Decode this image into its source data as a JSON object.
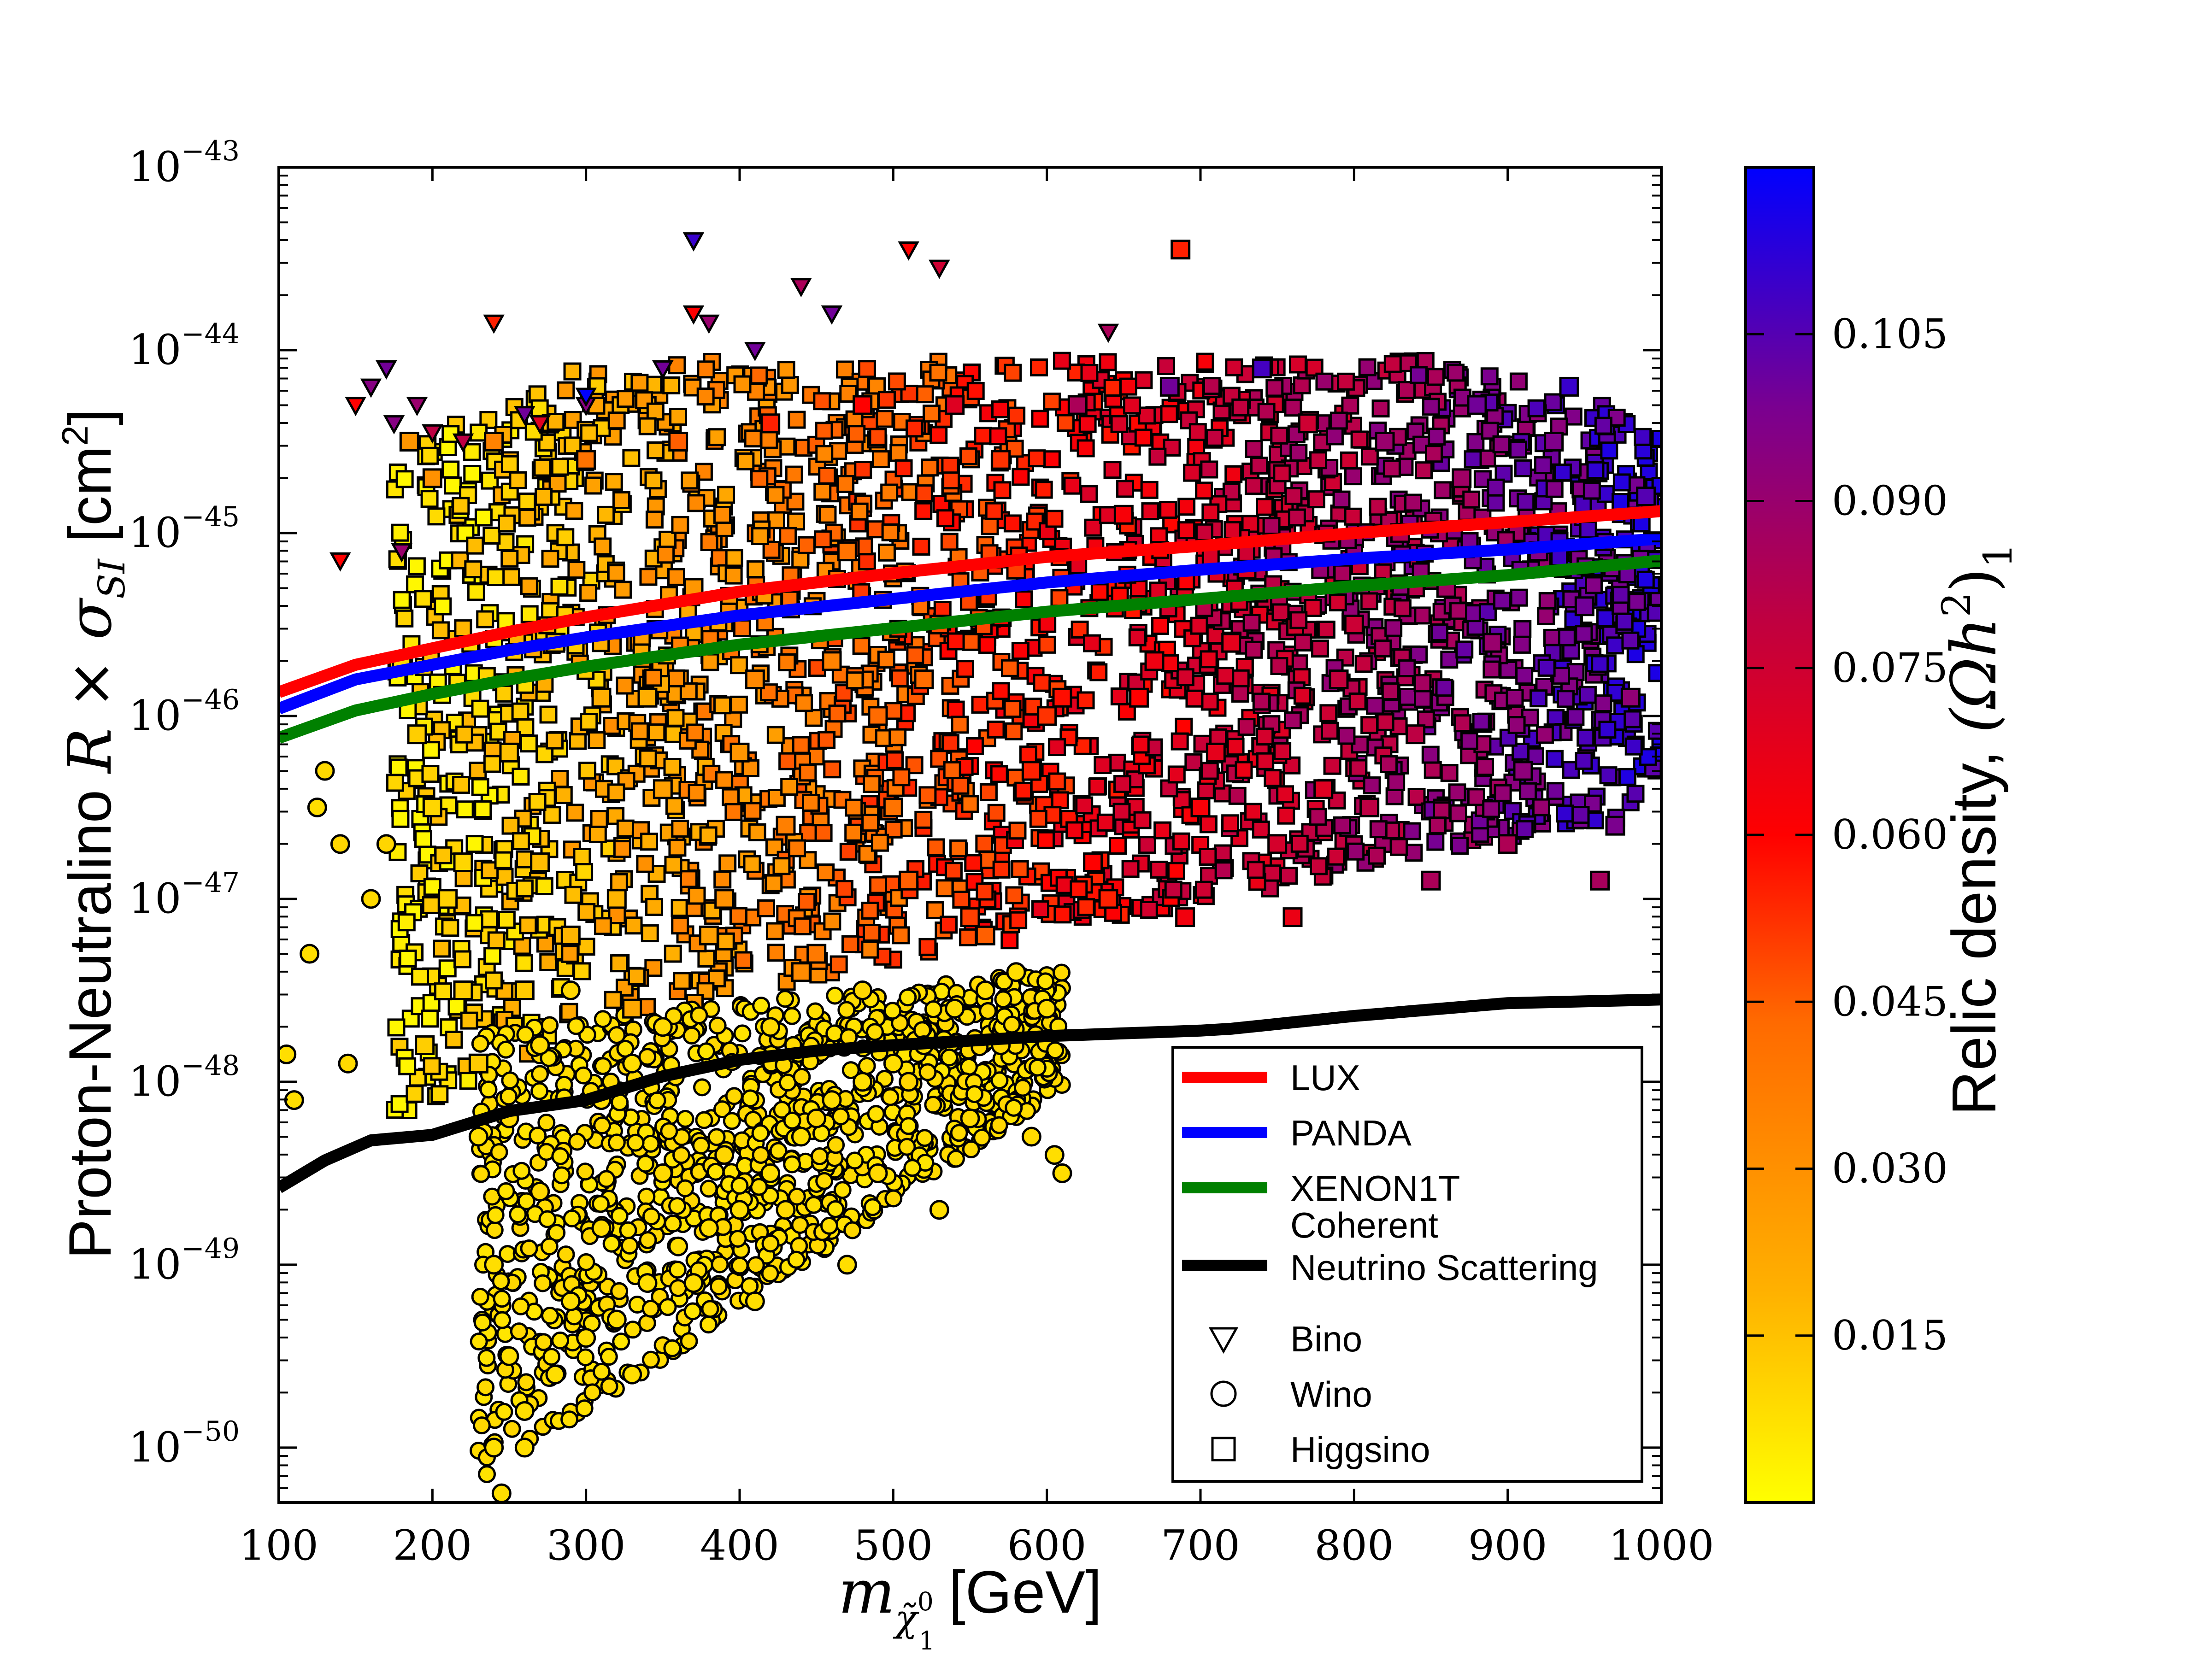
{
  "chart_data": {
    "type": "scatter",
    "title": "",
    "xlabel": {
      "symbol": "m",
      "sub_base": "χ̃",
      "sub_sup": "0",
      "sub_sub": "1",
      "unit": "[GeV]"
    },
    "ylabel": {
      "prefix": "Proton-Neutralino ",
      "math": "R × σ",
      "math_sub": "SI",
      "unit_pre": " [cm",
      "unit_sup": "2",
      "unit_post": "]"
    },
    "xlim": [
      100,
      1000
    ],
    "ylim_log10": [
      -50.3,
      -43
    ],
    "yscale": "log",
    "xticks": [
      {
        "value": 100,
        "label": "100"
      },
      {
        "value": 200,
        "label": "200"
      },
      {
        "value": 300,
        "label": "300"
      },
      {
        "value": 400,
        "label": "400"
      },
      {
        "value": 500,
        "label": "500"
      },
      {
        "value": 600,
        "label": "600"
      },
      {
        "value": 700,
        "label": "700"
      },
      {
        "value": 800,
        "label": "800"
      },
      {
        "value": 900,
        "label": "900"
      },
      {
        "value": 1000,
        "label": "1000"
      }
    ],
    "yticks": [
      {
        "exp": -43,
        "base": "10",
        "sup": "−43"
      },
      {
        "exp": -44,
        "base": "10",
        "sup": "−44"
      },
      {
        "exp": -45,
        "base": "10",
        "sup": "−45"
      },
      {
        "exp": -46,
        "base": "10",
        "sup": "−46"
      },
      {
        "exp": -47,
        "base": "10",
        "sup": "−47"
      },
      {
        "exp": -48,
        "base": "10",
        "sup": "−48"
      },
      {
        "exp": -49,
        "base": "10",
        "sup": "−49"
      },
      {
        "exp": -50,
        "base": "10",
        "sup": "−50"
      }
    ],
    "lines": [
      {
        "name": "LUX",
        "color": "#ff0000",
        "x": [
          100,
          150,
          200,
          250,
          300,
          400,
          500,
          600,
          700,
          800,
          900,
          1000
        ],
        "log10y": [
          -45.87,
          -45.72,
          -45.63,
          -45.54,
          -45.46,
          -45.32,
          -45.22,
          -45.13,
          -45.07,
          -45.0,
          -44.94,
          -44.88
        ]
      },
      {
        "name": "PANDA",
        "color": "#0000ff",
        "x": [
          100,
          150,
          200,
          250,
          300,
          400,
          500,
          600,
          700,
          800,
          900,
          1000
        ],
        "log10y": [
          -45.96,
          -45.8,
          -45.72,
          -45.64,
          -45.57,
          -45.45,
          -45.36,
          -45.27,
          -45.2,
          -45.14,
          -45.09,
          -45.03
        ]
      },
      {
        "name": "XENON1T",
        "color": "#008000",
        "x": [
          100,
          150,
          200,
          250,
          300,
          400,
          500,
          600,
          700,
          800,
          900,
          1000
        ],
        "log10y": [
          -46.12,
          -45.97,
          -45.88,
          -45.8,
          -45.73,
          -45.61,
          -45.52,
          -45.43,
          -45.36,
          -45.29,
          -45.23,
          -45.15
        ]
      },
      {
        "name": "Coherent Neutrino Scattering",
        "color": "#000000",
        "x": [
          100,
          130,
          160,
          200,
          250,
          300,
          350,
          400,
          450,
          500,
          600,
          700,
          720,
          800,
          900,
          1000
        ],
        "log10y": [
          -48.58,
          -48.43,
          -48.32,
          -48.29,
          -48.16,
          -48.1,
          -47.97,
          -47.88,
          -47.83,
          -47.8,
          -47.75,
          -47.72,
          -47.71,
          -47.64,
          -47.57,
          -47.55
        ]
      }
    ],
    "colorbar": {
      "label_prefix": "Relic density, ",
      "label_math": "(Ωh",
      "label_sup": "2",
      "label_close": ")",
      "label_sub": "1",
      "vmin": 0.0,
      "vmax": 0.12,
      "ticks": [
        "0.015",
        "0.030",
        "0.045",
        "0.060",
        "0.075",
        "0.090",
        "0.105"
      ],
      "tick_values": [
        0.015,
        0.03,
        0.045,
        0.06,
        0.075,
        0.09,
        0.105
      ],
      "colormap": [
        "#ffff00",
        "#ffb000",
        "#ff6a00",
        "#ff0000",
        "#c00040",
        "#7a0090",
        "#0000ff"
      ]
    },
    "legend": {
      "position": "lower-right",
      "entries": [
        {
          "label": "LUX",
          "kind": "line",
          "color": "#ff0000"
        },
        {
          "label": "PANDA",
          "kind": "line",
          "color": "#0000ff"
        },
        {
          "label": "XENON1T",
          "kind": "line",
          "color": "#008000"
        },
        {
          "label": "Coherent",
          "label2": "Neutrino Scattering",
          "kind": "line",
          "color": "#000000"
        },
        {
          "label": "Bino",
          "kind": "marker",
          "marker": "triangle-down"
        },
        {
          "label": "Wino",
          "kind": "marker",
          "marker": "circle"
        },
        {
          "label": "Higgsino",
          "kind": "marker",
          "marker": "square"
        }
      ]
    },
    "scatter_series": [
      {
        "name": "Higgsino",
        "marker": "square",
        "points": [
          [
            180,
            -45.7,
            0.01
          ],
          [
            190,
            -46.1,
            0.012
          ],
          [
            200,
            -46.5,
            0.01
          ],
          [
            210,
            -47.0,
            0.011
          ],
          [
            220,
            -47.5,
            0.012
          ],
          [
            230,
            -47.9,
            0.013
          ],
          [
            250,
            -46.2,
            0.015
          ],
          [
            270,
            -46.8,
            0.016
          ],
          [
            290,
            -47.2,
            0.018
          ],
          [
            310,
            -45.9,
            0.02
          ],
          [
            330,
            -47.6,
            0.022
          ],
          [
            350,
            -46.4,
            0.025
          ],
          [
            370,
            -45.3,
            0.028
          ],
          [
            390,
            -47.0,
            0.03
          ],
          [
            410,
            -45.8,
            0.033
          ],
          [
            430,
            -46.6,
            0.036
          ],
          [
            450,
            -47.3,
            0.038
          ],
          [
            470,
            -45.1,
            0.04
          ],
          [
            490,
            -46.0,
            0.043
          ],
          [
            510,
            -46.9,
            0.045
          ],
          [
            530,
            -45.5,
            0.048
          ],
          [
            550,
            -47.1,
            0.05
          ],
          [
            570,
            -44.6,
            0.052
          ],
          [
            590,
            -46.3,
            0.055
          ],
          [
            610,
            -45.9,
            0.058
          ],
          [
            630,
            -46.8,
            0.06
          ],
          [
            650,
            -44.9,
            0.062
          ],
          [
            670,
            -45.7,
            0.065
          ],
          [
            690,
            -47.1,
            0.064
          ],
          [
            710,
            -46.2,
            0.068
          ],
          [
            730,
            -45.2,
            0.07
          ],
          [
            750,
            -46.7,
            0.073
          ],
          [
            770,
            -44.4,
            0.075
          ],
          [
            790,
            -45.8,
            0.078
          ],
          [
            810,
            -46.5,
            0.08
          ],
          [
            830,
            -45.0,
            0.083
          ],
          [
            850,
            -46.9,
            0.085
          ],
          [
            870,
            -44.7,
            0.088
          ],
          [
            890,
            -45.6,
            0.09
          ],
          [
            910,
            -46.3,
            0.093
          ],
          [
            930,
            -44.5,
            0.097
          ],
          [
            950,
            -45.4,
            0.1
          ],
          [
            970,
            -46.6,
            0.098
          ],
          [
            990,
            -44.8,
            0.105
          ],
          [
            980,
            -45.9,
            0.092
          ],
          [
            960,
            -46.9,
            0.086
          ],
          [
            940,
            -44.2,
            0.11
          ],
          [
            920,
            -45.1,
            0.095
          ],
          [
            900,
            -46.7,
            0.084
          ],
          [
            880,
            -44.3,
            0.1
          ],
          [
            860,
            -45.3,
            0.087
          ],
          [
            840,
            -46.1,
            0.08
          ],
          [
            820,
            -44.5,
            0.09
          ],
          [
            800,
            -45.5,
            0.076
          ],
          [
            780,
            -46.4,
            0.07
          ],
          [
            760,
            -47.1,
            0.066
          ],
          [
            740,
            -44.1,
            0.108
          ],
          [
            720,
            -45.6,
            0.068
          ],
          [
            700,
            -46.5,
            0.062
          ],
          [
            680,
            -44.2,
            0.1
          ],
          [
            660,
            -45.9,
            0.06
          ],
          [
            640,
            -47.0,
            0.055
          ],
          [
            620,
            -44.3,
            0.085
          ],
          [
            600,
            -46.0,
            0.052
          ],
          [
            580,
            -45.2,
            0.05
          ],
          [
            560,
            -47.2,
            0.045
          ],
          [
            540,
            -44.3,
            0.07
          ],
          [
            520,
            -45.8,
            0.042
          ],
          [
            500,
            -46.5,
            0.04
          ],
          [
            480,
            -44.3,
            0.06
          ],
          [
            460,
            -45.7,
            0.035
          ],
          [
            440,
            -47.4,
            0.032
          ],
          [
            420,
            -44.4,
            0.055
          ],
          [
            400,
            -46.2,
            0.028
          ],
          [
            380,
            -47.2,
            0.025
          ],
          [
            360,
            -44.5,
            0.045
          ],
          [
            340,
            -45.9,
            0.02
          ],
          [
            320,
            -47.0,
            0.018
          ],
          [
            300,
            -44.6,
            0.04
          ],
          [
            280,
            -45.6,
            0.015
          ],
          [
            260,
            -47.5,
            0.013
          ],
          [
            240,
            -44.5,
            0.035
          ],
          [
            220,
            -46.8,
            0.01
          ],
          [
            200,
            -44.7,
            0.03
          ],
          [
            185,
            -44.5,
            0.028
          ],
          [
            195,
            -47.8,
            0.012
          ],
          [
            687,
            -43.45,
            0.055
          ]
        ]
      },
      {
        "name": "Wino",
        "marker": "circle",
        "points": [
          [
            105,
            -47.85,
            0.008
          ],
          [
            110,
            -48.1,
            0.008
          ],
          [
            130,
            -46.3,
            0.009
          ],
          [
            125,
            -46.5,
            0.008
          ],
          [
            140,
            -46.7,
            0.01
          ],
          [
            120,
            -47.3,
            0.008
          ],
          [
            145,
            -47.9,
            0.009
          ],
          [
            160,
            -47.0,
            0.009
          ],
          [
            170,
            -46.7,
            0.01
          ],
          [
            240,
            -49.0,
            0.008
          ],
          [
            250,
            -49.5,
            0.008
          ],
          [
            260,
            -50.0,
            0.008
          ],
          [
            270,
            -48.6,
            0.009
          ],
          [
            290,
            -49.2,
            0.008
          ],
          [
            310,
            -48.8,
            0.009
          ],
          [
            330,
            -49.6,
            0.008
          ],
          [
            350,
            -48.5,
            0.009
          ],
          [
            370,
            -49.1,
            0.008
          ],
          [
            390,
            -48.4,
            0.01
          ],
          [
            410,
            -49.2,
            0.008
          ],
          [
            430,
            -48.7,
            0.009
          ],
          [
            450,
            -48.2,
            0.01
          ],
          [
            470,
            -49.0,
            0.008
          ],
          [
            490,
            -48.5,
            0.009
          ],
          [
            510,
            -48.0,
            0.01
          ],
          [
            530,
            -48.7,
            0.008
          ],
          [
            550,
            -48.2,
            0.009
          ],
          [
            570,
            -47.8,
            0.01
          ],
          [
            590,
            -48.3,
            0.009
          ],
          [
            610,
            -48.5,
            0.008
          ],
          [
            240,
            -50.0,
            0.008
          ],
          [
            245,
            -50.25,
            0.008
          ],
          [
            260,
            -49.8,
            0.008
          ],
          [
            280,
            -49.6,
            0.008
          ],
          [
            300,
            -49.4,
            0.008
          ],
          [
            320,
            -49.3,
            0.008
          ],
          [
            340,
            -49.1,
            0.008
          ],
          [
            360,
            -48.9,
            0.008
          ],
          [
            380,
            -48.8,
            0.008
          ],
          [
            400,
            -48.7,
            0.008
          ],
          [
            420,
            -48.5,
            0.008
          ],
          [
            440,
            -48.3,
            0.008
          ],
          [
            460,
            -48.1,
            0.008
          ],
          [
            480,
            -48.0,
            0.008
          ],
          [
            500,
            -47.9,
            0.008
          ],
          [
            520,
            -47.8,
            0.008
          ],
          [
            540,
            -47.6,
            0.008
          ],
          [
            560,
            -47.5,
            0.008
          ],
          [
            580,
            -47.4,
            0.008
          ],
          [
            600,
            -47.6,
            0.008
          ],
          [
            605,
            -48.4,
            0.008
          ],
          [
            250,
            -48.2,
            0.009
          ],
          [
            270,
            -47.8,
            0.009
          ],
          [
            290,
            -47.5,
            0.01
          ],
          [
            230,
            -48.3,
            0.008
          ],
          [
            310,
            -48.1,
            0.008
          ],
          [
            330,
            -47.9,
            0.008
          ],
          [
            350,
            -47.7,
            0.009
          ],
          [
            420,
            -47.7,
            0.009
          ],
          [
            480,
            -47.5,
            0.01
          ]
        ]
      },
      {
        "name": "Bino",
        "marker": "triangle-down",
        "points": [
          [
            370,
            -43.4,
            0.11
          ],
          [
            510,
            -43.45,
            0.06
          ],
          [
            530,
            -43.55,
            0.075
          ],
          [
            440,
            -43.65,
            0.085
          ],
          [
            240,
            -43.85,
            0.055
          ],
          [
            370,
            -43.8,
            0.06
          ],
          [
            380,
            -43.85,
            0.09
          ],
          [
            460,
            -43.8,
            0.1
          ],
          [
            640,
            -43.9,
            0.085
          ],
          [
            140,
            -45.15,
            0.06
          ],
          [
            170,
            -44.1,
            0.1
          ],
          [
            160,
            -44.2,
            0.095
          ],
          [
            150,
            -44.3,
            0.06
          ],
          [
            190,
            -44.3,
            0.09
          ],
          [
            175,
            -44.4,
            0.095
          ],
          [
            200,
            -44.45,
            0.08
          ],
          [
            260,
            -44.35,
            0.1
          ],
          [
            300,
            -44.3,
            0.095
          ],
          [
            410,
            -44.0,
            0.1
          ],
          [
            300,
            -44.25,
            0.12
          ],
          [
            270,
            -44.4,
            0.07
          ],
          [
            180,
            -45.1,
            0.09
          ],
          [
            220,
            -44.5,
            0.08
          ],
          [
            350,
            -44.1,
            0.1
          ]
        ]
      }
    ]
  }
}
